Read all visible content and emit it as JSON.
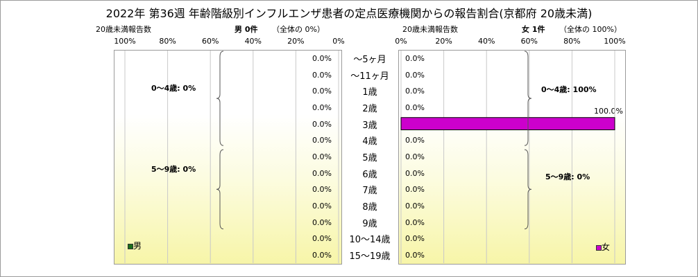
{
  "title": "2022年 第36週  年齢階級別インフルエンザ患者の定点医療機関からの報告割合(京都府 20歳未満)",
  "male": {
    "header": "20歳未満報告数",
    "count_label": "男 0件",
    "share_label": "（全体の  0%）",
    "legend": "男",
    "color": "#1a6e1a",
    "group_labels": [
      "0～4歳: 0%",
      "5～9歳: 0%"
    ]
  },
  "female": {
    "header": "20歳未満報告数",
    "count_label": "女 1件",
    "share_label": "（全体の  100%）",
    "legend": "女",
    "color": "#cc00cc",
    "group_labels": [
      "0～4歳: 100%",
      "5～9歳: 0%"
    ]
  },
  "chart_data": [
    {
      "type": "bar",
      "orientation": "horizontal",
      "direction": "right-to-left",
      "categories": [
        "～5ヶ月",
        "～11ヶ月",
        "1歳",
        "2歳",
        "3歳",
        "4歳",
        "5歳",
        "6歳",
        "7歳",
        "8歳",
        "9歳",
        "10～14歳",
        "15～19歳"
      ],
      "series": [
        {
          "name": "男",
          "values": [
            0,
            0,
            0,
            0,
            0,
            0,
            0,
            0,
            0,
            0,
            0,
            0,
            0
          ]
        }
      ],
      "data_labels": [
        "0.0%",
        "0.0%",
        "0.0%",
        "0.0%",
        "0.0%",
        "0.0%",
        "0.0%",
        "0.0%",
        "0.0%",
        "0.0%",
        "0.0%",
        "0.0%",
        "0.0%"
      ],
      "xlim": [
        0,
        100
      ],
      "x_ticks": [
        "100%",
        "80%",
        "60%",
        "40%",
        "20%",
        "0%"
      ],
      "grid": true,
      "legend": "bottom-left"
    },
    {
      "type": "bar",
      "orientation": "horizontal",
      "direction": "left-to-right",
      "categories": [
        "～5ヶ月",
        "～11ヶ月",
        "1歳",
        "2歳",
        "3歳",
        "4歳",
        "5歳",
        "6歳",
        "7歳",
        "8歳",
        "9歳",
        "10～14歳",
        "15～19歳"
      ],
      "series": [
        {
          "name": "女",
          "values": [
            0,
            0,
            0,
            0,
            100,
            0,
            0,
            0,
            0,
            0,
            0,
            0,
            0
          ]
        }
      ],
      "data_labels": [
        "0.0%",
        "0.0%",
        "0.0%",
        "0.0%",
        "100.0%",
        "0.0%",
        "0.0%",
        "0.0%",
        "0.0%",
        "0.0%",
        "0.0%",
        "0.0%",
        "0.0%"
      ],
      "xlim": [
        0,
        100
      ],
      "x_ticks": [
        "0%",
        "20%",
        "40%",
        "60%",
        "80%",
        "100%"
      ],
      "grid": true,
      "legend": "bottom-right"
    }
  ]
}
